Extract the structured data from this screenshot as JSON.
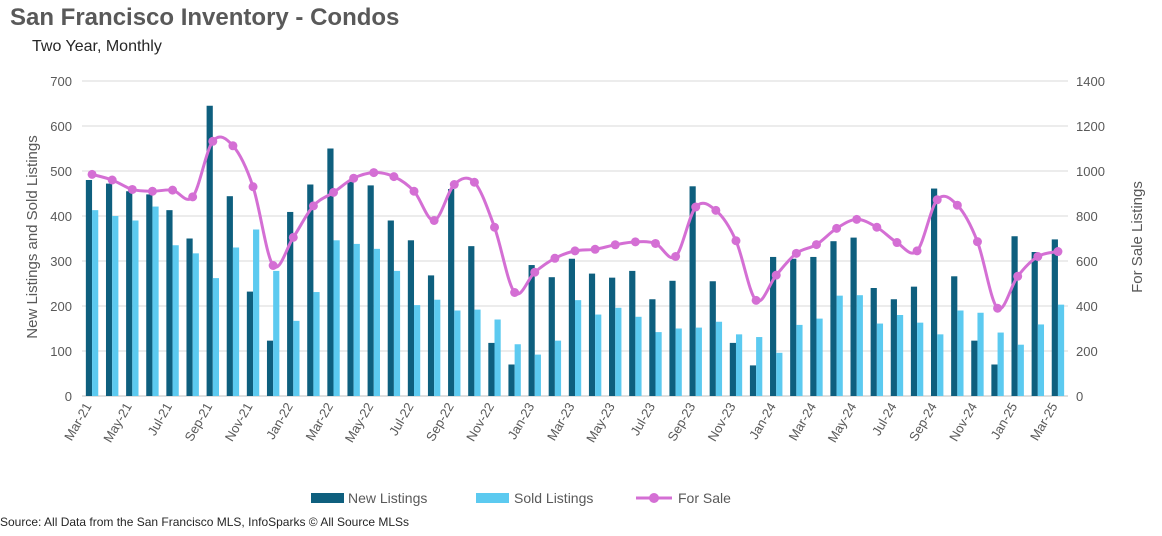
{
  "header": {
    "title": "San Francisco Inventory - Condos",
    "subtitle": "Two Year, Monthly"
  },
  "footer": {
    "source": "Source: All Data from the San Francisco MLS, InfoSparks © All Source MLSs"
  },
  "chart_data": {
    "type": "bar",
    "categories": [
      "Mar-21",
      "Apr-21",
      "May-21",
      "Jun-21",
      "Jul-21",
      "Aug-21",
      "Sep-21",
      "Oct-21",
      "Nov-21",
      "Dec-21",
      "Jan-22",
      "Feb-22",
      "Mar-22",
      "Apr-22",
      "May-22",
      "Jun-22",
      "Jul-22",
      "Aug-22",
      "Sep-22",
      "Oct-22",
      "Nov-22",
      "Dec-22",
      "Jan-23",
      "Feb-23",
      "Mar-23",
      "Apr-23",
      "May-23",
      "Jun-23",
      "Jul-23",
      "Aug-23",
      "Sep-23",
      "Oct-23",
      "Nov-23",
      "Dec-23",
      "Jan-24",
      "Feb-24",
      "Mar-24",
      "Apr-24",
      "May-24",
      "Jun-24",
      "Jul-24",
      "Aug-24",
      "Sep-24",
      "Oct-24",
      "Nov-24",
      "Dec-24",
      "Jan-25",
      "Feb-25",
      "Mar-25"
    ],
    "xtick_labels": [
      "Mar-21",
      "May-21",
      "Jul-21",
      "Sep-21",
      "Nov-21",
      "Jan-22",
      "Mar-22",
      "May-22",
      "Jul-22",
      "Sep-22",
      "Nov-22",
      "Jan-23",
      "Mar-23",
      "May-23",
      "Jul-23",
      "Sep-23",
      "Nov-23",
      "Jan-24",
      "Mar-24",
      "May-24",
      "Jul-24",
      "Sep-24",
      "Nov-24",
      "Jan-25",
      "Mar-25"
    ],
    "series": [
      {
        "name": "New Listings",
        "type": "bar",
        "axis": "left",
        "color": "#0e5f7e",
        "values": [
          480,
          472,
          455,
          448,
          413,
          350,
          645,
          444,
          232,
          123,
          409,
          470,
          550,
          476,
          468,
          390,
          346,
          268,
          460,
          333,
          118,
          70,
          291,
          264,
          305,
          272,
          263,
          278,
          215,
          256,
          466,
          255,
          118,
          68,
          309,
          305,
          309,
          344,
          352,
          240,
          215,
          243,
          461,
          266,
          123,
          70,
          355,
          320,
          348
        ]
      },
      {
        "name": "Sold Listings",
        "type": "bar",
        "axis": "left",
        "color": "#5ccaf0",
        "values": [
          413,
          400,
          390,
          421,
          335,
          317,
          262,
          330,
          370,
          278,
          167,
          231,
          346,
          338,
          327,
          278,
          202,
          214,
          190,
          192,
          170,
          115,
          92,
          123,
          213,
          181,
          196,
          176,
          142,
          150,
          152,
          165,
          137,
          131,
          96,
          158,
          172,
          223,
          224,
          161,
          180,
          163,
          137,
          190,
          185,
          141,
          114,
          159,
          203
        ]
      },
      {
        "name": "For Sale",
        "type": "line",
        "axis": "right",
        "color": "#d46fd4",
        "values": [
          985,
          960,
          918,
          910,
          915,
          885,
          1132,
          1112,
          930,
          580,
          705,
          845,
          905,
          968,
          993,
          975,
          910,
          780,
          940,
          950,
          750,
          460,
          550,
          612,
          645,
          652,
          672,
          685,
          678,
          620,
          840,
          825,
          690,
          425,
          537,
          634,
          673,
          745,
          785,
          750,
          682,
          645,
          872,
          848,
          686,
          390,
          532,
          620,
          642
        ]
      }
    ],
    "ylabel": "New Listings and Sold Listings",
    "ylim": [
      0,
      700
    ],
    "yticks": [
      0,
      100,
      200,
      300,
      400,
      500,
      600,
      700
    ],
    "y2label": "For Sale Listings",
    "y2lim": [
      0,
      1400
    ],
    "y2ticks": [
      0,
      200,
      400,
      600,
      800,
      1000,
      1200,
      1400
    ],
    "grid": true,
    "legend": "bottom-center"
  }
}
